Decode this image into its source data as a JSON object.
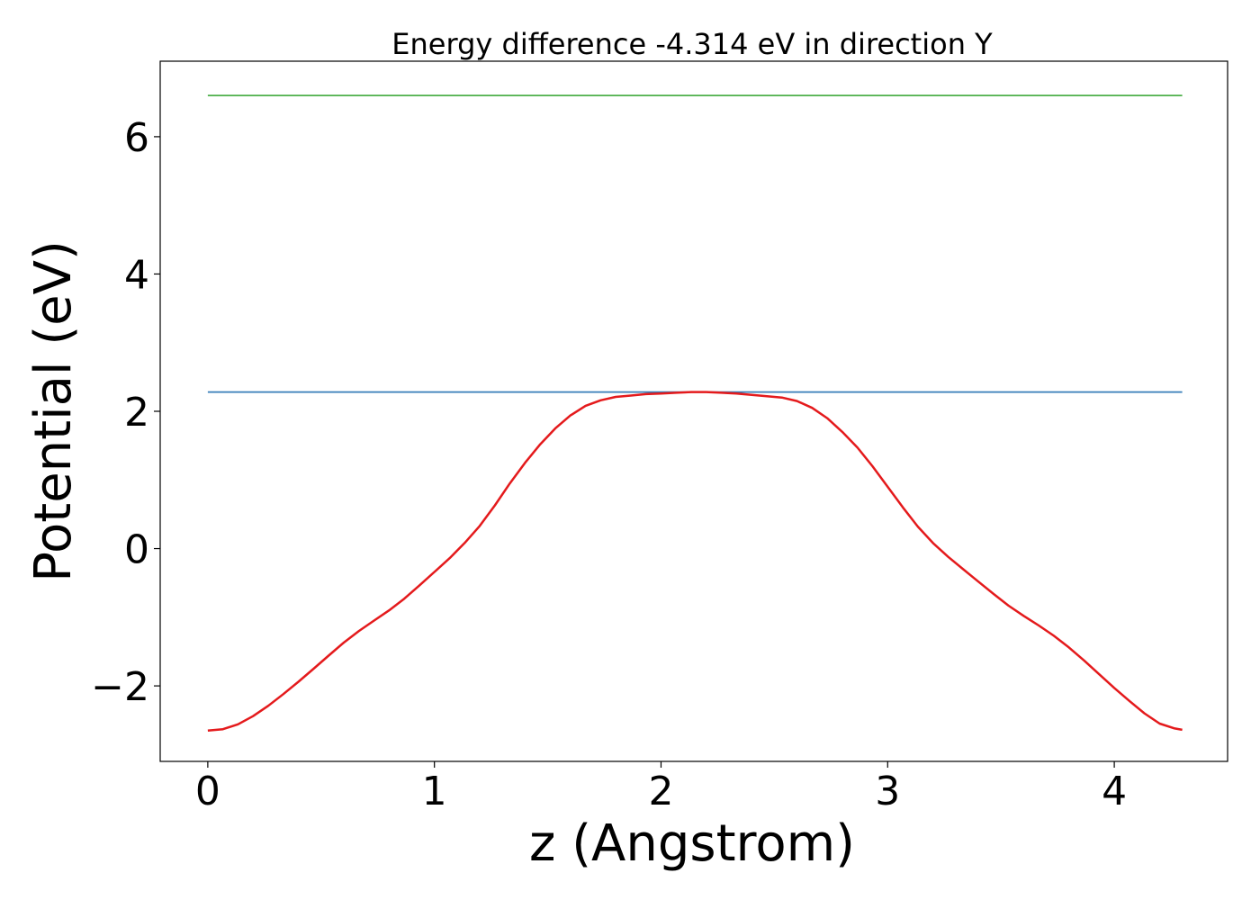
{
  "chart_data": {
    "type": "line",
    "title": "Energy difference -4.314 eV in direction Y",
    "xlabel": "z (Angstrom)",
    "ylabel": "Potential (eV)",
    "xlim": [
      -0.21,
      4.5
    ],
    "ylim": [
      -3.1,
      7.1
    ],
    "xticks": [
      0,
      1,
      2,
      3,
      4
    ],
    "xtick_labels": [
      "0",
      "1",
      "2",
      "3",
      "4"
    ],
    "yticks": [
      -2,
      0,
      2,
      4,
      6
    ],
    "ytick_labels": [
      "−2",
      "0",
      "2",
      "4",
      "6"
    ],
    "grid": false,
    "colors": {
      "potential": "#e41a1c",
      "level_high": "#4daf4a",
      "level_low": "#377eb8"
    },
    "series": [
      {
        "key": "potential",
        "x": [
          0.0,
          0.067,
          0.133,
          0.2,
          0.267,
          0.333,
          0.4,
          0.467,
          0.533,
          0.6,
          0.667,
          0.733,
          0.8,
          0.867,
          0.933,
          1.0,
          1.067,
          1.133,
          1.2,
          1.267,
          1.333,
          1.4,
          1.467,
          1.533,
          1.6,
          1.667,
          1.733,
          1.8,
          1.867,
          1.933,
          2.0,
          2.067,
          2.133,
          2.2,
          2.267,
          2.333,
          2.4,
          2.467,
          2.533,
          2.6,
          2.667,
          2.733,
          2.8,
          2.867,
          2.933,
          3.0,
          3.067,
          3.133,
          3.2,
          3.267,
          3.333,
          3.4,
          3.467,
          3.533,
          3.6,
          3.667,
          3.733,
          3.8,
          3.867,
          3.933,
          4.0,
          4.067,
          4.133,
          4.2,
          4.267,
          4.3
        ],
        "y": [
          -2.65,
          -2.63,
          -2.56,
          -2.44,
          -2.29,
          -2.12,
          -1.94,
          -1.75,
          -1.56,
          -1.37,
          -1.2,
          -1.05,
          -0.9,
          -0.73,
          -0.54,
          -0.34,
          -0.14,
          0.08,
          0.33,
          0.63,
          0.95,
          1.25,
          1.52,
          1.75,
          1.94,
          2.08,
          2.16,
          2.21,
          2.23,
          2.25,
          2.26,
          2.27,
          2.28,
          2.28,
          2.27,
          2.26,
          2.24,
          2.22,
          2.2,
          2.15,
          2.05,
          1.9,
          1.7,
          1.47,
          1.2,
          0.9,
          0.6,
          0.32,
          0.08,
          -0.12,
          -0.3,
          -0.48,
          -0.66,
          -0.83,
          -0.98,
          -1.12,
          -1.27,
          -1.44,
          -1.63,
          -1.83,
          -2.03,
          -2.22,
          -2.4,
          -2.55,
          -2.62,
          -2.64
        ]
      },
      {
        "key": "level_high",
        "x": [
          0.0,
          4.3
        ],
        "y": [
          6.6,
          6.6
        ]
      },
      {
        "key": "level_low",
        "x": [
          0.0,
          4.3
        ],
        "y": [
          2.28,
          2.28
        ]
      }
    ]
  }
}
